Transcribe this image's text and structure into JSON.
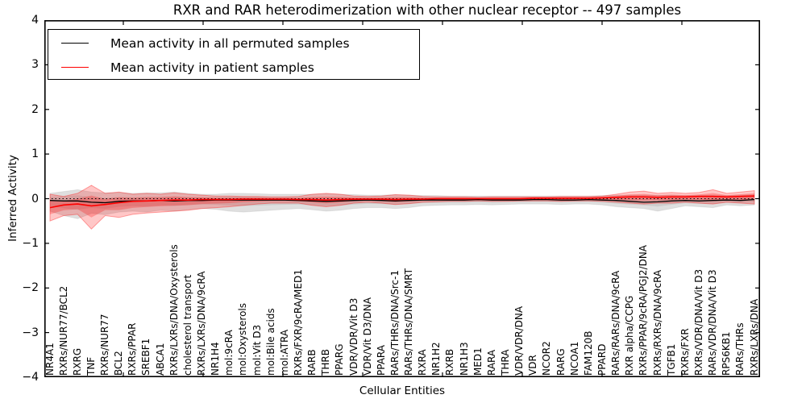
{
  "chart_data": {
    "type": "line",
    "title": "RXR and RAR heterodimerization with other nuclear receptor -- 497 samples",
    "xlabel": "Cellular Entities",
    "ylabel": "Inferred Activity",
    "ylim": [
      -4,
      4
    ],
    "yticks": [
      4,
      3,
      2,
      1,
      0,
      -1,
      -2,
      -3,
      -4
    ],
    "grid": false,
    "legend_position": "upper left",
    "zero_line": "dotted",
    "categories": [
      "NR4A1",
      "RXRs/NUR77/BCL2",
      "RXRG",
      "TNF",
      "RXRs/NUR77",
      "BCL2",
      "RXRs/PPAR",
      "SREBF1",
      "ABCA1",
      "RXRs/LXRs/DNA/Oxysterols",
      "cholesterol transport",
      "RXRs/LXRs/DNA/9cRA",
      "NR1H4",
      "mol:9cRA",
      "mol:Oxysterols",
      "mol:Vit D3",
      "mol:Bile acids",
      "mol:ATRA",
      "RXRs/FXR/9cRA/MED1",
      "RARB",
      "THRB",
      "PPARG",
      "VDR/VDR/Vit D3",
      "VDR/Vit D3/DNA",
      "PPARA",
      "RARs/THRs/DNA/Src-1",
      "RARs/THRs/DNA/SMRT",
      "RXRA",
      "NR1H2",
      "RXRB",
      "NR1H3",
      "MED1",
      "RARA",
      "THRA",
      "VDR/VDR/DNA",
      "VDR",
      "NCOR2",
      "RARG",
      "NCOA1",
      "FAM120B",
      "PPARD",
      "RARs/RARs/DNA/9cRA",
      "RXR alpha/CCPG",
      "RXRs/PPAR/9cRA/PGJ2/DNA",
      "RXRs/RXRs/DNA/9cRA",
      "TGFB1",
      "RXRs/FXR",
      "RXRs/VDR/DNA/Vit D3",
      "RARs/VDR/DNA/Vit D3",
      "RPS6KB1",
      "RARs/THRs",
      "RXRs/LXRs/DNA"
    ],
    "series": [
      {
        "name": "Mean activity in all permuted samples",
        "color": "#000000",
        "values": [
          -0.04,
          -0.05,
          -0.05,
          -0.08,
          -0.09,
          -0.06,
          -0.05,
          -0.05,
          -0.04,
          -0.05,
          -0.04,
          -0.04,
          -0.03,
          -0.03,
          -0.03,
          -0.03,
          -0.03,
          -0.03,
          -0.04,
          -0.05,
          -0.06,
          -0.05,
          -0.04,
          -0.03,
          -0.04,
          -0.05,
          -0.04,
          -0.03,
          -0.03,
          -0.03,
          -0.03,
          -0.02,
          -0.03,
          -0.03,
          -0.03,
          -0.02,
          -0.02,
          -0.03,
          -0.03,
          -0.02,
          -0.03,
          -0.04,
          -0.06,
          -0.08,
          -0.07,
          -0.05,
          -0.04,
          -0.05,
          -0.04,
          -0.03,
          -0.04,
          -0.02
        ],
        "band": {
          "color": "#808080",
          "upper": [
            0.12,
            0.16,
            0.2,
            0.15,
            0.13,
            0.14,
            0.12,
            0.13,
            0.13,
            0.15,
            0.12,
            0.1,
            0.1,
            0.12,
            0.12,
            0.11,
            0.1,
            0.1,
            0.1,
            0.1,
            0.11,
            0.1,
            0.09,
            0.08,
            0.08,
            0.09,
            0.08,
            0.07,
            0.07,
            0.06,
            0.06,
            0.06,
            0.06,
            0.06,
            0.06,
            0.06,
            0.06,
            0.06,
            0.06,
            0.06,
            0.07,
            0.08,
            0.08,
            0.08,
            0.08,
            0.08,
            0.07,
            0.08,
            0.08,
            0.07,
            0.08,
            0.09
          ],
          "lower": [
            -0.28,
            -0.38,
            -0.45,
            -0.33,
            -0.36,
            -0.3,
            -0.28,
            -0.3,
            -0.26,
            -0.28,
            -0.25,
            -0.22,
            -0.24,
            -0.28,
            -0.3,
            -0.28,
            -0.26,
            -0.24,
            -0.22,
            -0.25,
            -0.28,
            -0.26,
            -0.22,
            -0.2,
            -0.2,
            -0.22,
            -0.2,
            -0.16,
            -0.15,
            -0.14,
            -0.14,
            -0.13,
            -0.14,
            -0.13,
            -0.12,
            -0.12,
            -0.12,
            -0.13,
            -0.12,
            -0.12,
            -0.14,
            -0.18,
            -0.2,
            -0.22,
            -0.28,
            -0.22,
            -0.16,
            -0.18,
            -0.2,
            -0.14,
            -0.16,
            -0.14
          ]
        }
      },
      {
        "name": "Mean activity in patient samples",
        "color": "#ff0000",
        "values": [
          -0.2,
          -0.14,
          -0.12,
          -0.16,
          -0.13,
          -0.09,
          -0.06,
          -0.05,
          -0.04,
          -0.03,
          -0.03,
          -0.02,
          -0.02,
          -0.02,
          -0.01,
          -0.01,
          -0.01,
          -0.01,
          -0.02,
          -0.02,
          -0.03,
          -0.02,
          -0.01,
          -0.01,
          -0.01,
          -0.02,
          -0.01,
          -0.01,
          0.0,
          0.0,
          0.0,
          0.0,
          0.0,
          0.0,
          0.0,
          0.01,
          0.01,
          0.01,
          0.01,
          0.01,
          0.02,
          0.03,
          0.04,
          0.04,
          0.03,
          0.04,
          0.04,
          0.05,
          0.05,
          0.04,
          0.05,
          0.06
        ],
        "band": {
          "color": "#ff0000",
          "upper": [
            0.1,
            0.05,
            0.12,
            0.3,
            0.12,
            0.15,
            0.1,
            0.12,
            0.1,
            0.13,
            0.1,
            0.08,
            0.06,
            0.06,
            0.05,
            0.05,
            0.04,
            0.04,
            0.05,
            0.1,
            0.12,
            0.1,
            0.06,
            0.05,
            0.06,
            0.09,
            0.08,
            0.05,
            0.04,
            0.04,
            0.04,
            0.03,
            0.04,
            0.04,
            0.04,
            0.04,
            0.04,
            0.05,
            0.05,
            0.05,
            0.06,
            0.1,
            0.15,
            0.17,
            0.12,
            0.14,
            0.12,
            0.14,
            0.2,
            0.12,
            0.15,
            0.18
          ],
          "lower": [
            -0.5,
            -0.38,
            -0.35,
            -0.68,
            -0.38,
            -0.42,
            -0.35,
            -0.32,
            -0.3,
            -0.28,
            -0.26,
            -0.22,
            -0.2,
            -0.18,
            -0.15,
            -0.12,
            -0.1,
            -0.1,
            -0.1,
            -0.15,
            -0.18,
            -0.15,
            -0.1,
            -0.08,
            -0.1,
            -0.13,
            -0.11,
            -0.08,
            -0.07,
            -0.06,
            -0.06,
            -0.05,
            -0.06,
            -0.06,
            -0.05,
            -0.05,
            -0.05,
            -0.06,
            -0.05,
            -0.05,
            -0.06,
            -0.08,
            -0.1,
            -0.12,
            -0.1,
            -0.1,
            -0.08,
            -0.1,
            -0.12,
            -0.08,
            -0.1,
            -0.12
          ]
        }
      }
    ]
  }
}
